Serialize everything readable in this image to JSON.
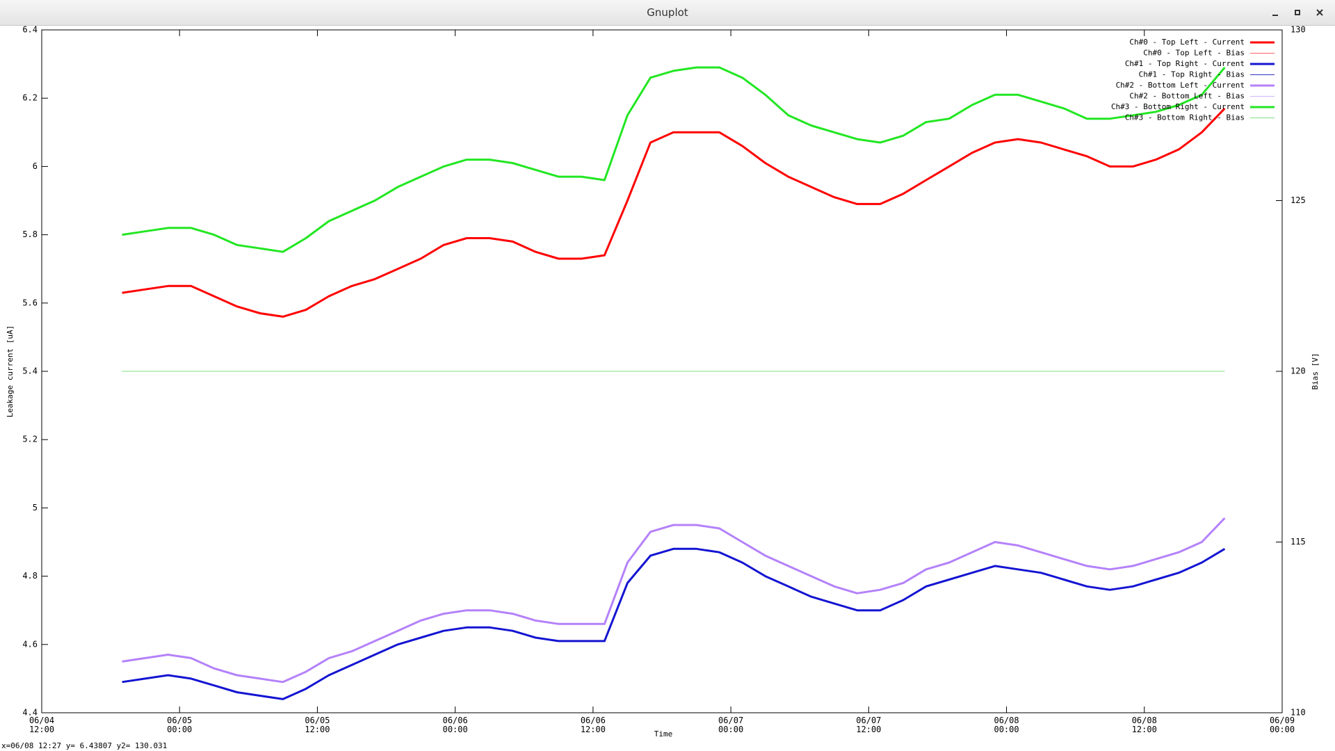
{
  "window_title": "Gnuplot",
  "status_bar": "x=06/08 12:27 y= 6.43807 y2= 130.031",
  "chart_data": {
    "type": "line",
    "xlabel": "Time",
    "ylabel": "Leakage current [uA]",
    "y2label": "Bias [V]",
    "x": [
      "06/04 19:00",
      "06/04 21:00",
      "06/04 23:00",
      "06/05 01:00",
      "06/05 03:00",
      "06/05 05:00",
      "06/05 07:00",
      "06/05 09:00",
      "06/05 11:00",
      "06/05 13:00",
      "06/05 15:00",
      "06/05 17:00",
      "06/05 19:00",
      "06/05 21:00",
      "06/05 23:00",
      "06/06 01:00",
      "06/06 03:00",
      "06/06 05:00",
      "06/06 07:00",
      "06/06 09:00",
      "06/06 11:00",
      "06/06 13:00",
      "06/06 15:00",
      "06/06 17:00",
      "06/06 19:00",
      "06/06 21:00",
      "06/06 23:00",
      "06/07 01:00",
      "06/07 03:00",
      "06/07 05:00",
      "06/07 07:00",
      "06/07 09:00",
      "06/07 11:00",
      "06/07 13:00",
      "06/07 15:00",
      "06/07 17:00",
      "06/07 19:00",
      "06/07 21:00",
      "06/07 23:00",
      "06/08 01:00",
      "06/08 03:00",
      "06/08 05:00",
      "06/08 07:00",
      "06/08 09:00",
      "06/08 11:00",
      "06/08 13:00",
      "06/08 15:00",
      "06/08 17:00",
      "06/08 19:00"
    ],
    "xlim": [
      "06/04 12:00",
      "06/09 00:00"
    ],
    "xticks": [
      "06/04 12:00",
      "06/05 00:00",
      "06/05 12:00",
      "06/06 00:00",
      "06/06 12:00",
      "06/07 00:00",
      "06/07 12:00",
      "06/08 00:00",
      "06/08 12:00",
      "06/09 00:00"
    ],
    "ylim": [
      4.4,
      6.4
    ],
    "yticks": [
      4.4,
      4.6,
      4.8,
      {
        "value": 5,
        "label": "5"
      },
      5.2,
      5.4,
      5.6,
      5.8,
      {
        "value": 6,
        "label": "6"
      },
      6.2,
      6.4
    ],
    "y2lim": [
      110,
      130
    ],
    "y2ticks": [
      110,
      115,
      120,
      125,
      130
    ],
    "legend": "top right",
    "grid": false,
    "series": [
      {
        "name": "Ch#0 - Top Left - Current",
        "color": "#ff0000",
        "line_width": 3,
        "values": [
          5.63,
          5.64,
          5.65,
          5.65,
          5.62,
          5.59,
          5.57,
          5.56,
          5.58,
          5.62,
          5.65,
          5.67,
          5.7,
          5.73,
          5.77,
          5.79,
          5.79,
          5.78,
          5.75,
          5.73,
          5.73,
          5.74,
          5.9,
          6.07,
          6.1,
          6.1,
          6.1,
          6.06,
          6.01,
          5.97,
          5.94,
          5.91,
          5.89,
          5.89,
          5.92,
          5.96,
          6.0,
          6.04,
          6.07,
          6.08,
          6.07,
          6.05,
          6.03,
          6.0,
          6.0,
          6.02,
          6.05,
          6.1,
          6.17
        ]
      },
      {
        "name": "Ch#0 - Top Left - Bias",
        "color": "#ff6060",
        "line_width": 1,
        "axis": "y2",
        "values": [
          120,
          120,
          120,
          120,
          120,
          120,
          120,
          120,
          120,
          120,
          120,
          120,
          120,
          120,
          120,
          120,
          120,
          120,
          120,
          120,
          120,
          120,
          120,
          120,
          120,
          120,
          120,
          120,
          120,
          120,
          120,
          120,
          120,
          120,
          120,
          120,
          120,
          120,
          120,
          120,
          120,
          120,
          120,
          120,
          120,
          120,
          120,
          120,
          120
        ]
      },
      {
        "name": "Ch#1 - Top Right - Current",
        "color": "#1414d2",
        "line_width": 3,
        "values": [
          4.49,
          4.5,
          4.51,
          4.5,
          4.48,
          4.46,
          4.45,
          4.44,
          4.47,
          4.51,
          4.54,
          4.57,
          4.6,
          4.62,
          4.64,
          4.65,
          4.65,
          4.64,
          4.62,
          4.61,
          4.61,
          4.61,
          4.78,
          4.86,
          4.88,
          4.88,
          4.87,
          4.84,
          4.8,
          4.77,
          4.74,
          4.72,
          4.7,
          4.7,
          4.73,
          4.77,
          4.79,
          4.81,
          4.83,
          4.82,
          4.81,
          4.79,
          4.77,
          4.76,
          4.77,
          4.79,
          4.81,
          4.84,
          4.88
        ]
      },
      {
        "name": "Ch#1 - Top Right - Bias",
        "color": "#3030c0",
        "line_width": 1,
        "axis": "y2",
        "values": [
          120,
          120,
          120,
          120,
          120,
          120,
          120,
          120,
          120,
          120,
          120,
          120,
          120,
          120,
          120,
          120,
          120,
          120,
          120,
          120,
          120,
          120,
          120,
          120,
          120,
          120,
          120,
          120,
          120,
          120,
          120,
          120,
          120,
          120,
          120,
          120,
          120,
          120,
          120,
          120,
          120,
          120,
          120,
          120,
          120,
          120,
          120,
          120,
          120
        ]
      },
      {
        "name": "Ch#2 - Bottom Left - Current",
        "color": "#b482fa",
        "line_width": 3,
        "values": [
          4.55,
          4.56,
          4.57,
          4.56,
          4.53,
          4.51,
          4.5,
          4.49,
          4.52,
          4.56,
          4.58,
          4.61,
          4.64,
          4.67,
          4.69,
          4.7,
          4.7,
          4.69,
          4.67,
          4.66,
          4.66,
          4.66,
          4.84,
          4.93,
          4.95,
          4.95,
          4.94,
          4.9,
          4.86,
          4.83,
          4.8,
          4.77,
          4.75,
          4.76,
          4.78,
          4.82,
          4.84,
          4.87,
          4.9,
          4.89,
          4.87,
          4.85,
          4.83,
          4.82,
          4.83,
          4.85,
          4.87,
          4.9,
          4.97
        ]
      },
      {
        "name": "Ch#2 - Bottom Left - Bias",
        "color": "#d2b4ff",
        "line_width": 1,
        "axis": "y2",
        "values": [
          120,
          120,
          120,
          120,
          120,
          120,
          120,
          120,
          120,
          120,
          120,
          120,
          120,
          120,
          120,
          120,
          120,
          120,
          120,
          120,
          120,
          120,
          120,
          120,
          120,
          120,
          120,
          120,
          120,
          120,
          120,
          120,
          120,
          120,
          120,
          120,
          120,
          120,
          120,
          120,
          120,
          120,
          120,
          120,
          120,
          120,
          120,
          120,
          120
        ]
      },
      {
        "name": "Ch#3 - Bottom Right - Current",
        "color": "#22e622",
        "line_width": 3,
        "values": [
          5.8,
          5.81,
          5.82,
          5.82,
          5.8,
          5.77,
          5.76,
          5.75,
          5.79,
          5.84,
          5.87,
          5.9,
          5.94,
          5.97,
          6.0,
          6.02,
          6.02,
          6.01,
          5.99,
          5.97,
          5.97,
          5.96,
          6.15,
          6.26,
          6.28,
          6.29,
          6.29,
          6.26,
          6.21,
          6.15,
          6.12,
          6.1,
          6.08,
          6.07,
          6.09,
          6.13,
          6.14,
          6.18,
          6.21,
          6.21,
          6.19,
          6.17,
          6.14,
          6.14,
          6.15,
          6.16,
          6.18,
          6.21,
          6.29
        ]
      },
      {
        "name": "Ch#3 - Bottom Right - Bias",
        "color": "#7ee07e",
        "line_width": 1,
        "axis": "y2",
        "values": [
          120,
          120,
          120,
          120,
          120,
          120,
          120,
          120,
          120,
          120,
          120,
          120,
          120,
          120,
          120,
          120,
          120,
          120,
          120,
          120,
          120,
          120,
          120,
          120,
          120,
          120,
          120,
          120,
          120,
          120,
          120,
          120,
          120,
          120,
          120,
          120,
          120,
          120,
          120,
          120,
          120,
          120,
          120,
          120,
          120,
          120,
          120,
          120,
          120
        ]
      }
    ]
  }
}
